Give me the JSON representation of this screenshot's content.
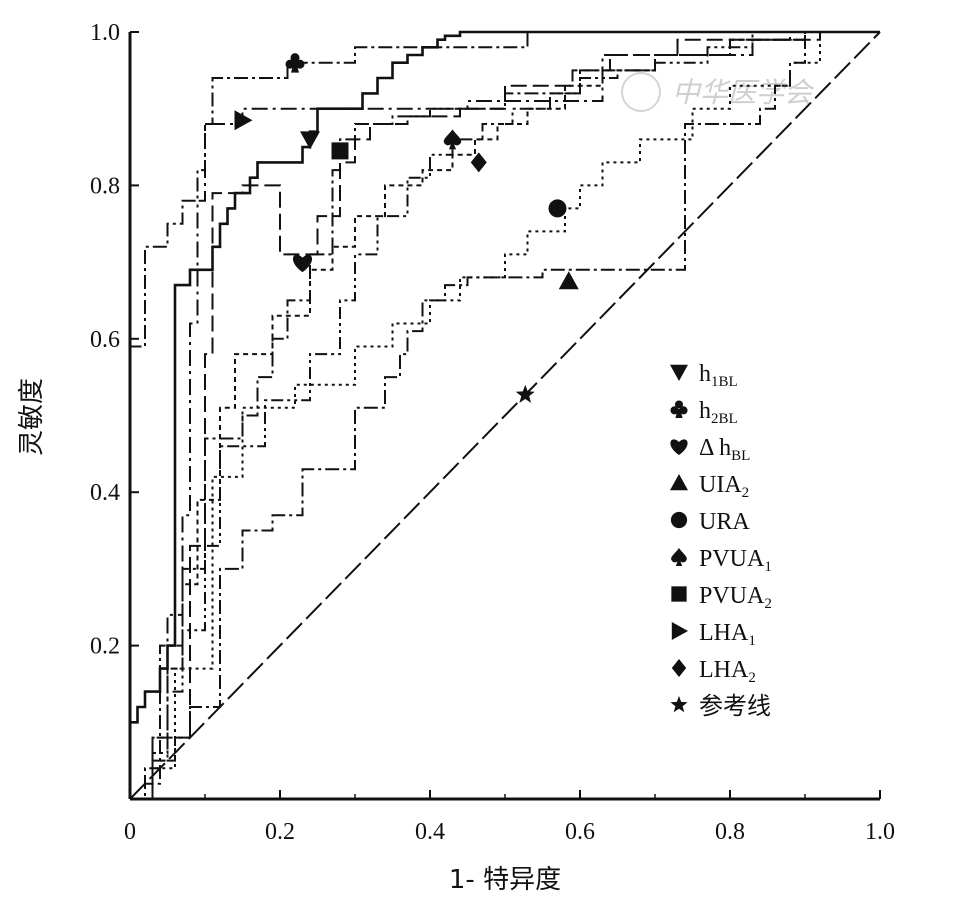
{
  "chart_data": {
    "type": "line",
    "title": "",
    "xlabel": "1- 特异度",
    "ylabel": "灵敏度",
    "xlim": [
      0,
      1
    ],
    "ylim": [
      0,
      1
    ],
    "x_ticks": [
      "0",
      "0.2",
      "0.4",
      "0.6",
      "0.8",
      "1.0"
    ],
    "y_ticks": [
      "0.2",
      "0.4",
      "0.6",
      "0.8",
      "1.0"
    ],
    "grid": false,
    "legend_position": "right",
    "series": [
      {
        "name": "h1BL",
        "label_main": "h",
        "label_sub": "1BL",
        "marker": "triangle-down",
        "dash": "",
        "marker_at": [
          0.24,
          0.86
        ],
        "x": [
          0,
          0,
          0.01,
          0.01,
          0.02,
          0.02,
          0.04,
          0.04,
          0.05,
          0.05,
          0.06,
          0.06,
          0.08,
          0.08,
          0.11,
          0.11,
          0.12,
          0.12,
          0.13,
          0.13,
          0.14,
          0.14,
          0.16,
          0.16,
          0.17,
          0.17,
          0.23,
          0.23,
          0.24,
          0.24,
          0.25,
          0.25,
          0.31,
          0.31,
          0.33,
          0.33,
          0.35,
          0.35,
          0.37,
          0.37,
          0.39,
          0.39,
          0.41,
          0.41,
          0.42,
          0.42,
          0.44,
          0.44,
          0.46,
          0.46,
          1
        ],
        "y": [
          0,
          0.1,
          0.1,
          0.12,
          0.12,
          0.14,
          0.14,
          0.17,
          0.17,
          0.2,
          0.2,
          0.67,
          0.67,
          0.69,
          0.69,
          0.72,
          0.72,
          0.75,
          0.75,
          0.77,
          0.77,
          0.79,
          0.79,
          0.81,
          0.81,
          0.83,
          0.83,
          0.85,
          0.85,
          0.87,
          0.87,
          0.9,
          0.9,
          0.92,
          0.92,
          0.94,
          0.94,
          0.96,
          0.96,
          0.97,
          0.97,
          0.98,
          0.98,
          0.99,
          0.99,
          0.995,
          0.995,
          1,
          1,
          1,
          1
        ]
      },
      {
        "name": "h2BL",
        "label_main": "h",
        "label_sub": "2BL",
        "marker": "club",
        "dash": "14 4 3 4",
        "marker_at": [
          0.22,
          0.96
        ],
        "x": [
          0,
          0,
          0.02,
          0.02,
          0.05,
          0.05,
          0.07,
          0.07,
          0.09,
          0.09,
          0.1,
          0.1,
          0.11,
          0.11,
          0.21,
          0.21,
          0.3,
          0.3,
          0.53,
          0.53,
          1
        ],
        "y": [
          0,
          0.59,
          0.59,
          0.72,
          0.72,
          0.75,
          0.75,
          0.78,
          0.78,
          0.82,
          0.82,
          0.88,
          0.88,
          0.94,
          0.94,
          0.96,
          0.96,
          0.98,
          0.98,
          1,
          1
        ]
      },
      {
        "name": "ΔhBL",
        "label_main": "Δ h",
        "label_sub": "BL",
        "marker": "heart",
        "dash": "16 6",
        "marker_at": [
          0.23,
          0.7
        ],
        "x": [
          0,
          0.03,
          0.03,
          0.08,
          0.08,
          0.1,
          0.1,
          0.11,
          0.11,
          0.15,
          0.15,
          0.2,
          0.2,
          0.25,
          0.25,
          0.28,
          0.28,
          0.3,
          0.3,
          0.32,
          0.32,
          0.37,
          0.37,
          0.44,
          0.44,
          0.5,
          0.5,
          0.59,
          0.59,
          0.64,
          0.64,
          0.73,
          0.73,
          0.92,
          0.92,
          1
        ],
        "y": [
          0,
          0,
          0.08,
          0.08,
          0.33,
          0.33,
          0.58,
          0.58,
          0.79,
          0.79,
          0.8,
          0.8,
          0.71,
          0.71,
          0.76,
          0.76,
          0.83,
          0.83,
          0.86,
          0.86,
          0.88,
          0.88,
          0.89,
          0.89,
          0.9,
          0.9,
          0.93,
          0.93,
          0.95,
          0.95,
          0.97,
          0.97,
          0.99,
          0.99,
          1,
          1
        ]
      },
      {
        "name": "UIA2",
        "label_main": "UIA",
        "label_sub": "2",
        "marker": "triangle-up",
        "dash": "14 4 3 4",
        "marker_at": [
          0.585,
          0.675
        ],
        "x": [
          0,
          0.02,
          0.02,
          0.04,
          0.04,
          0.06,
          0.06,
          0.08,
          0.08,
          0.12,
          0.12,
          0.15,
          0.15,
          0.19,
          0.19,
          0.23,
          0.23,
          0.3,
          0.3,
          0.34,
          0.34,
          0.36,
          0.36,
          0.37,
          0.37,
          0.39,
          0.39,
          0.42,
          0.42,
          0.45,
          0.45,
          0.55,
          0.55,
          0.74,
          0.74,
          0.84,
          0.84,
          0.86,
          0.86,
          0.88,
          0.88,
          0.9,
          0.9,
          1
        ],
        "y": [
          0,
          0,
          0.02,
          0.02,
          0.05,
          0.05,
          0.08,
          0.08,
          0.12,
          0.12,
          0.3,
          0.3,
          0.35,
          0.35,
          0.37,
          0.37,
          0.43,
          0.43,
          0.51,
          0.51,
          0.55,
          0.55,
          0.58,
          0.58,
          0.61,
          0.61,
          0.65,
          0.65,
          0.67,
          0.67,
          0.68,
          0.68,
          0.69,
          0.69,
          0.88,
          0.88,
          0.9,
          0.9,
          0.93,
          0.93,
          0.96,
          0.96,
          1,
          1
        ]
      },
      {
        "name": "URA",
        "label_main": "URA",
        "label_sub": "",
        "marker": "circle",
        "dash": "3 4",
        "marker_at": [
          0.57,
          0.77
        ],
        "x": [
          0,
          0.03,
          0.03,
          0.06,
          0.06,
          0.11,
          0.11,
          0.15,
          0.15,
          0.22,
          0.22,
          0.3,
          0.3,
          0.35,
          0.35,
          0.4,
          0.4,
          0.44,
          0.44,
          0.5,
          0.5,
          0.53,
          0.53,
          0.58,
          0.58,
          0.6,
          0.6,
          0.63,
          0.63,
          0.68,
          0.68,
          0.75,
          0.75,
          0.8,
          0.8,
          0.88,
          0.88,
          0.92,
          0.92,
          1
        ],
        "y": [
          0,
          0,
          0.04,
          0.04,
          0.17,
          0.17,
          0.42,
          0.42,
          0.51,
          0.51,
          0.54,
          0.54,
          0.59,
          0.59,
          0.62,
          0.62,
          0.65,
          0.65,
          0.68,
          0.68,
          0.71,
          0.71,
          0.74,
          0.74,
          0.77,
          0.77,
          0.8,
          0.8,
          0.83,
          0.83,
          0.86,
          0.86,
          0.9,
          0.9,
          0.93,
          0.93,
          0.96,
          0.96,
          1,
          1
        ]
      },
      {
        "name": "PVUA1",
        "label_main": "PVUA",
        "label_sub": "1",
        "marker": "spade",
        "dash": "12 4 3 4 3 4",
        "marker_at": [
          0.43,
          0.86
        ],
        "x": [
          0,
          0.03,
          0.03,
          0.05,
          0.05,
          0.07,
          0.07,
          0.1,
          0.1,
          0.12,
          0.12,
          0.18,
          0.18,
          0.24,
          0.24,
          0.28,
          0.28,
          0.3,
          0.3,
          0.33,
          0.33,
          0.37,
          0.37,
          0.4,
          0.4,
          0.43,
          0.43,
          0.47,
          0.47,
          0.51,
          0.51,
          0.56,
          0.56,
          0.6,
          0.6,
          0.65,
          0.65,
          0.7,
          0.7,
          0.77,
          0.77,
          0.83,
          0.83,
          0.88,
          0.88,
          1
        ],
        "y": [
          0,
          0,
          0.06,
          0.06,
          0.14,
          0.14,
          0.22,
          0.22,
          0.33,
          0.33,
          0.46,
          0.46,
          0.52,
          0.52,
          0.58,
          0.58,
          0.65,
          0.65,
          0.71,
          0.71,
          0.76,
          0.76,
          0.81,
          0.81,
          0.84,
          0.84,
          0.86,
          0.86,
          0.88,
          0.88,
          0.9,
          0.9,
          0.92,
          0.92,
          0.94,
          0.94,
          0.95,
          0.95,
          0.96,
          0.96,
          0.98,
          0.98,
          0.99,
          0.99,
          1,
          1
        ]
      },
      {
        "name": "PVUA2",
        "label_main": "PVUA",
        "label_sub": "2",
        "marker": "square",
        "dash": "14 4 3 4",
        "marker_at": [
          0.28,
          0.845
        ],
        "x": [
          0,
          0.02,
          0.02,
          0.04,
          0.04,
          0.07,
          0.07,
          0.1,
          0.1,
          0.15,
          0.15,
          0.17,
          0.17,
          0.19,
          0.19,
          0.21,
          0.21,
          0.24,
          0.24,
          0.27,
          0.27,
          0.28,
          0.28,
          0.3,
          0.3,
          0.35,
          0.35,
          0.4,
          0.4,
          0.5,
          0.5,
          0.6,
          0.6,
          0.7,
          0.7,
          0.8,
          0.8,
          0.9,
          0.9,
          1
        ],
        "y": [
          0,
          0,
          0.04,
          0.04,
          0.2,
          0.2,
          0.3,
          0.3,
          0.47,
          0.47,
          0.5,
          0.5,
          0.55,
          0.55,
          0.6,
          0.6,
          0.65,
          0.65,
          0.71,
          0.71,
          0.82,
          0.82,
          0.86,
          0.86,
          0.88,
          0.88,
          0.89,
          0.89,
          0.9,
          0.9,
          0.92,
          0.92,
          0.95,
          0.95,
          0.97,
          0.97,
          0.99,
          0.99,
          1,
          1
        ]
      },
      {
        "name": "LHA1",
        "label_main": "LHA",
        "label_sub": "1",
        "marker": "triangle-right",
        "dash": "16 5 3 5",
        "marker_at": [
          0.15,
          0.885
        ],
        "x": [
          0,
          0.03,
          0.03,
          0.05,
          0.05,
          0.07,
          0.07,
          0.08,
          0.08,
          0.09,
          0.09,
          0.1,
          0.1,
          0.15,
          0.15,
          0.45,
          0.45,
          0.63,
          0.63,
          0.83,
          0.83,
          1
        ],
        "y": [
          0,
          0,
          0.05,
          0.05,
          0.24,
          0.24,
          0.37,
          0.37,
          0.62,
          0.62,
          0.78,
          0.78,
          0.88,
          0.88,
          0.9,
          0.9,
          0.91,
          0.91,
          0.97,
          0.97,
          1,
          1
        ]
      },
      {
        "name": "LHA2",
        "label_main": "LHA",
        "label_sub": "2",
        "marker": "diamond",
        "dash": "5 4",
        "marker_at": [
          0.465,
          0.83
        ],
        "x": [
          0,
          0.03,
          0.03,
          0.05,
          0.05,
          0.07,
          0.07,
          0.09,
          0.09,
          0.12,
          0.12,
          0.14,
          0.14,
          0.19,
          0.19,
          0.24,
          0.24,
          0.27,
          0.27,
          0.3,
          0.3,
          0.34,
          0.34,
          0.39,
          0.39,
          0.43,
          0.43,
          0.46,
          0.46,
          0.49,
          0.49,
          0.53,
          0.53,
          0.58,
          0.58,
          0.63,
          0.63,
          0.7,
          0.7,
          0.8,
          0.8,
          0.9,
          0.9,
          1
        ],
        "y": [
          0,
          0,
          0.08,
          0.08,
          0.17,
          0.17,
          0.28,
          0.28,
          0.39,
          0.39,
          0.51,
          0.51,
          0.58,
          0.58,
          0.63,
          0.63,
          0.69,
          0.69,
          0.72,
          0.72,
          0.76,
          0.76,
          0.8,
          0.8,
          0.82,
          0.82,
          0.84,
          0.84,
          0.86,
          0.86,
          0.88,
          0.88,
          0.9,
          0.9,
          0.93,
          0.93,
          0.95,
          0.95,
          0.97,
          0.97,
          0.99,
          0.99,
          1,
          1
        ]
      },
      {
        "name": "参考线",
        "label_main": "参考线",
        "label_sub": "",
        "marker": "star",
        "dash": "22 6",
        "marker_at": [
          0.527,
          0.527
        ],
        "x": [
          0,
          1
        ],
        "y": [
          0,
          1
        ]
      }
    ],
    "watermark": "中华医学会"
  }
}
